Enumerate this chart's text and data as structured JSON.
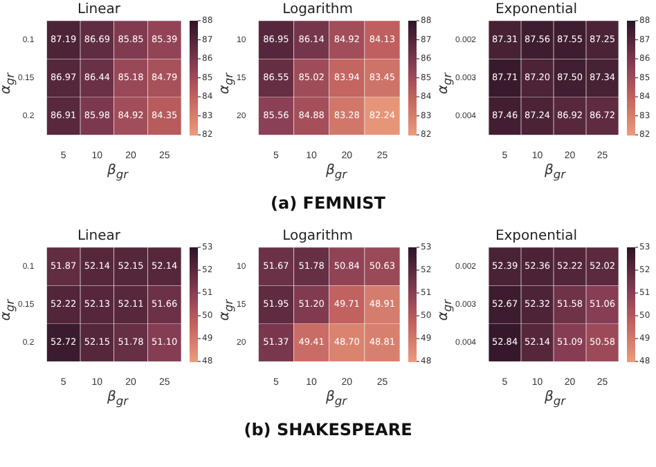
{
  "chart_data": [
    {
      "type": "heatmap",
      "title": "Linear",
      "xlabel": "β$_{gr}$",
      "ylabel": "α$_{gr}$",
      "categories": [
        "5",
        "10",
        "20",
        "25"
      ],
      "y_categories": [
        "0.1",
        "0.15",
        "0.2"
      ],
      "cells": [
        [
          87.19,
          86.69,
          85.85,
          85.39
        ],
        [
          86.97,
          86.44,
          85.18,
          84.79
        ],
        [
          86.91,
          85.98,
          84.92,
          84.35
        ]
      ],
      "cell_labels": [
        [
          "87.19",
          "86.69",
          "85.85",
          "85.39"
        ],
        [
          "86.97",
          "86.44",
          "85.18",
          "84.79"
        ],
        [
          "86.91",
          "85.98",
          "84.92",
          "84.35"
        ]
      ],
      "clim": [
        82,
        88
      ],
      "cticks": [
        82,
        83,
        84,
        85,
        86,
        87,
        88
      ]
    },
    {
      "type": "heatmap",
      "title": "Logarithm",
      "xlabel": "β$_{gr}$",
      "ylabel": "α$_{gr}$",
      "categories": [
        "5",
        "10",
        "20",
        "25"
      ],
      "y_categories": [
        "10",
        "15",
        "20"
      ],
      "cells": [
        [
          86.95,
          86.14,
          84.92,
          84.13
        ],
        [
          86.55,
          85.02,
          83.94,
          83.45
        ],
        [
          85.56,
          84.88,
          83.28,
          82.24
        ]
      ],
      "cell_labels": [
        [
          "86.95",
          "86.14",
          "84.92",
          "84.13"
        ],
        [
          "86.55",
          "85.02",
          "83.94",
          "83.45"
        ],
        [
          "85.56",
          "84.88",
          "83.28",
          "82.24"
        ]
      ],
      "clim": [
        82,
        88
      ],
      "cticks": [
        82,
        83,
        84,
        85,
        86,
        87,
        88
      ],
      "annotations": [
        "(a) FEMNIST"
      ]
    },
    {
      "type": "heatmap",
      "title": "Exponential",
      "xlabel": "β$_{gr}$",
      "ylabel": "α$_{gr}$",
      "categories": [
        "5",
        "10",
        "20",
        "25"
      ],
      "y_categories": [
        "0.002",
        "0.003",
        "0.004"
      ],
      "cells": [
        [
          87.31,
          87.56,
          87.55,
          87.25
        ],
        [
          87.71,
          87.2,
          87.5,
          87.34
        ],
        [
          87.46,
          87.24,
          86.92,
          86.72
        ]
      ],
      "cell_labels": [
        [
          "87.31",
          "87.56",
          "87.55",
          "87.25"
        ],
        [
          "87.71",
          "87.20",
          "87.50",
          "87.34"
        ],
        [
          "87.46",
          "87.24",
          "86.92",
          "86.72"
        ]
      ],
      "clim": [
        82,
        88
      ],
      "cticks": [
        82,
        83,
        84,
        85,
        86,
        87,
        88
      ]
    },
    {
      "type": "heatmap",
      "title": "Linear",
      "xlabel": "β$_{gr}$",
      "ylabel": "α$_{gr}$",
      "categories": [
        "5",
        "10",
        "20",
        "25"
      ],
      "y_categories": [
        "0.1",
        "0.15",
        "0.2"
      ],
      "cells": [
        [
          51.87,
          52.14,
          52.15,
          52.14
        ],
        [
          52.22,
          52.13,
          52.11,
          51.66
        ],
        [
          52.72,
          52.15,
          51.78,
          51.1
        ]
      ],
      "cell_labels": [
        [
          "51.87",
          "52.14",
          "52.15",
          "52.14"
        ],
        [
          "52.22",
          "52.13",
          "52.11",
          "51.66"
        ],
        [
          "52.72",
          "52.15",
          "51.78",
          "51.10"
        ]
      ],
      "clim": [
        48,
        53
      ],
      "cticks": [
        48,
        49,
        50,
        51,
        52,
        53
      ]
    },
    {
      "type": "heatmap",
      "title": "Logarithm",
      "xlabel": "β$_{gr}$",
      "ylabel": "α$_{gr}$",
      "categories": [
        "5",
        "10",
        "20",
        "25"
      ],
      "y_categories": [
        "10",
        "15",
        "20"
      ],
      "cells": [
        [
          51.67,
          51.78,
          50.84,
          50.63
        ],
        [
          51.95,
          51.2,
          49.71,
          48.91
        ],
        [
          51.37,
          49.41,
          48.7,
          48.81
        ]
      ],
      "cell_labels": [
        [
          "51.67",
          "51.78",
          "50.84",
          "50.63"
        ],
        [
          "51.95",
          "51.20",
          "49.71",
          "48.91"
        ],
        [
          "51.37",
          "49.41",
          "48.70",
          "48.81"
        ]
      ],
      "clim": [
        48,
        53
      ],
      "cticks": [
        48,
        49,
        50,
        51,
        52,
        53
      ],
      "annotations": [
        "(b) SHAKESPEARE"
      ]
    },
    {
      "type": "heatmap",
      "title": "Exponential",
      "xlabel": "β$_{gr}$",
      "ylabel": "α$_{gr}$",
      "categories": [
        "5",
        "10",
        "20",
        "25"
      ],
      "y_categories": [
        "0.002",
        "0.003",
        "0.004"
      ],
      "cells": [
        [
          52.39,
          52.36,
          52.22,
          52.02
        ],
        [
          52.67,
          52.32,
          51.58,
          51.06
        ],
        [
          52.84,
          52.14,
          51.09,
          50.58
        ]
      ],
      "cell_labels": [
        [
          "52.39",
          "52.36",
          "52.22",
          "52.02"
        ],
        [
          "52.67",
          "52.32",
          "51.58",
          "51.06"
        ],
        [
          "52.84",
          "52.14",
          "51.09",
          "50.58"
        ]
      ],
      "clim": [
        48,
        53
      ],
      "cticks": [
        48,
        49,
        50,
        51,
        52,
        53
      ]
    }
  ]
}
